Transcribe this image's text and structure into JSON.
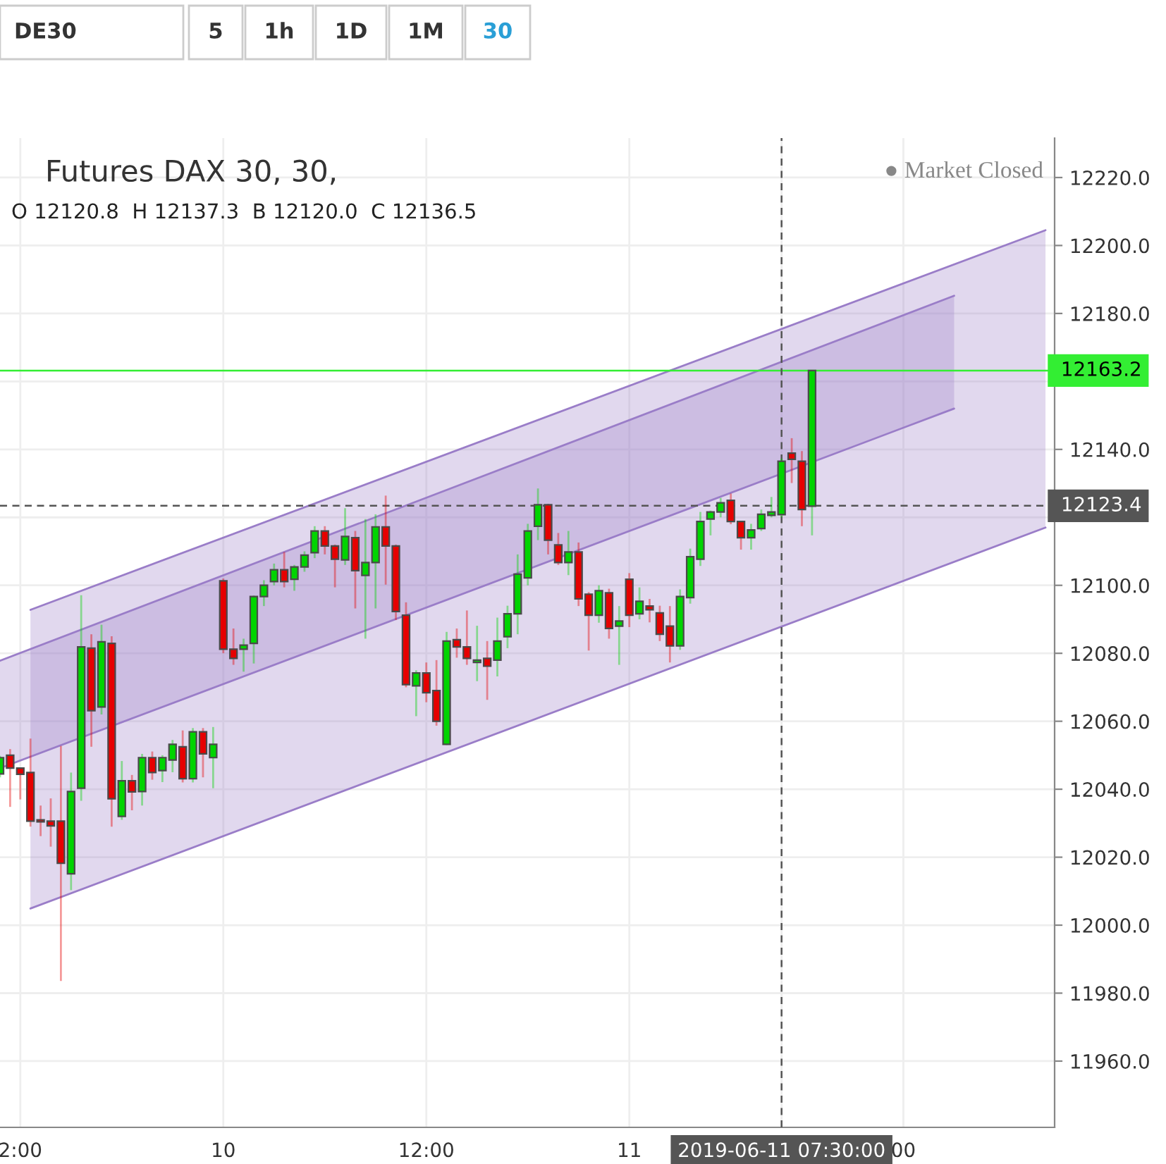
{
  "chart_data": {
    "type": "candlestick",
    "title": "Futures DAX 30, 30,",
    "subtitle": "O 12120.8  H 12137.3  B 12120.0  C 12136.5",
    "annotations": [
      "● Market Closed",
      "DE30",
      "5",
      "1h",
      "1D",
      "1M",
      "30"
    ],
    "categories": [
      null,
      null,
      "2:00",
      null,
      null,
      null,
      null,
      null,
      null,
      null,
      null,
      null,
      null,
      null,
      null,
      null,
      null,
      null,
      null,
      null,
      null,
      null,
      "10",
      null,
      null,
      null,
      null,
      null,
      null,
      null,
      null,
      null,
      null,
      null,
      null,
      null,
      null,
      null,
      null,
      null,
      null,
      null,
      "12:00",
      null,
      null,
      null,
      null,
      null,
      null,
      null,
      null,
      null,
      null,
      null,
      null,
      null,
      null,
      null,
      null,
      null,
      null,
      null,
      "11",
      null,
      null,
      null,
      null,
      null,
      null,
      null,
      null,
      null,
      null,
      null,
      null,
      null,
      null,
      "2019-06-11 07:30:00",
      null,
      null,
      null,
      null,
      null,
      null,
      null,
      null,
      null,
      null,
      null,
      "00",
      null,
      null,
      null,
      null,
      null,
      null,
      null,
      null,
      null,
      null,
      null,
      null,
      null,
      null
    ],
    "ohlc": [
      [
        12044.5,
        12049.8,
        12043.5,
        12049.3
      ],
      [
        12050.0,
        12051.8,
        12034.8,
        12046.2
      ],
      [
        12046.2,
        12046.4,
        12037.0,
        12044.4
      ],
      [
        12044.9,
        12054.9,
        12029.0,
        12030.6
      ],
      [
        12031.0,
        12035.2,
        12026.2,
        12030.4
      ],
      [
        12030.6,
        12037.3,
        12023.1,
        12029.2
      ],
      [
        12030.6,
        12052.7,
        11983.6,
        12018.2
      ],
      [
        12015.1,
        12044.9,
        12010.3,
        12039.3
      ],
      [
        12040.3,
        12097.1,
        12036.6,
        12081.9
      ],
      [
        12081.5,
        12085.6,
        12052.5,
        12063.1
      ],
      [
        12064.2,
        12088.4,
        12062.0,
        12083.4
      ],
      [
        12082.9,
        12085.0,
        12029.0,
        12037.2
      ],
      [
        12032.0,
        12048.3,
        12031.0,
        12042.5
      ],
      [
        12042.5,
        12044.2,
        12033.8,
        12039.2
      ],
      [
        12039.3,
        12050.4,
        12035.2,
        12049.3
      ],
      [
        12049.3,
        12051.1,
        12042.8,
        12044.9
      ],
      [
        12045.5,
        12050.0,
        12042.1,
        12049.3
      ],
      [
        12048.6,
        12054.5,
        12045.0,
        12053.2
      ],
      [
        12052.5,
        12057.3,
        12042.0,
        12043.1
      ],
      [
        12043.1,
        12058.0,
        12042.0,
        12056.9
      ],
      [
        12056.9,
        12058.0,
        12043.5,
        12050.4
      ],
      [
        12049.3,
        12058.3,
        12040.3,
        12053.2
      ],
      [
        12101.3,
        12102.0,
        12080.0,
        12081.2
      ],
      [
        12081.2,
        12087.3,
        12076.6,
        12078.5
      ],
      [
        12081.2,
        12084.3,
        12074.6,
        12082.4
      ],
      [
        12082.9,
        12097.0,
        12077.0,
        12096.7
      ],
      [
        12096.7,
        12101.5,
        12093.9,
        12100.0
      ],
      [
        12101.1,
        12106.4,
        12100.0,
        12104.6
      ],
      [
        12104.6,
        12109.8,
        12099.4,
        12101.1
      ],
      [
        12101.8,
        12106.0,
        12098.4,
        12105.4
      ],
      [
        12105.4,
        12110.0,
        12104.0,
        12108.9
      ],
      [
        12109.6,
        12117.4,
        12108.0,
        12116.0
      ],
      [
        12116.0,
        12117.4,
        12109.1,
        12111.6
      ],
      [
        12111.6,
        12112.0,
        12099.4,
        12107.7
      ],
      [
        12107.5,
        12122.7,
        12106.0,
        12114.4
      ],
      [
        12114.0,
        12116.0,
        12093.2,
        12104.3
      ],
      [
        12102.9,
        12119.5,
        12084.3,
        12106.7
      ],
      [
        12106.7,
        12120.9,
        12093.2,
        12117.2
      ],
      [
        12117.2,
        12126.4,
        12100.2,
        12111.6
      ],
      [
        12111.6,
        12112.0,
        12089.8,
        12092.3
      ],
      [
        12091.2,
        12095.0,
        12070.0,
        12070.8
      ],
      [
        12070.4,
        12075.0,
        12061.5,
        12074.2
      ],
      [
        12074.2,
        12077.3,
        12065.6,
        12068.4
      ],
      [
        12069.0,
        12078.0,
        12058.7,
        12060.0
      ],
      [
        12053.2,
        12086.3,
        12053.0,
        12083.6
      ],
      [
        12084.0,
        12087.3,
        12078.7,
        12081.9
      ],
      [
        12081.9,
        12092.6,
        12076.6,
        12078.5
      ],
      [
        12077.3,
        12088.1,
        12071.8,
        12078.0
      ],
      [
        12078.5,
        12083.6,
        12066.3,
        12076.2
      ],
      [
        12078.0,
        12090.5,
        12073.2,
        12083.6
      ],
      [
        12084.9,
        12094.0,
        12081.5,
        12091.6
      ],
      [
        12091.6,
        12109.1,
        12085.6,
        12103.3
      ],
      [
        12102.2,
        12118.1,
        12100.0,
        12116.0
      ],
      [
        12117.4,
        12128.5,
        12113.3,
        12123.7
      ],
      [
        12123.7,
        12124.0,
        12109.1,
        12113.3
      ],
      [
        12111.9,
        12115.4,
        12106.0,
        12106.7
      ],
      [
        12106.7,
        12116.0,
        12103.0,
        12109.8
      ],
      [
        12109.8,
        12112.6,
        12093.9,
        12096.0
      ],
      [
        12097.4,
        12098.0,
        12080.8,
        12091.2
      ],
      [
        12091.2,
        12100.0,
        12089.0,
        12098.4
      ],
      [
        12097.8,
        12099.0,
        12084.3,
        12087.3
      ],
      [
        12088.0,
        12093.9,
        12076.6,
        12089.5
      ],
      [
        12101.8,
        12103.6,
        12087.7,
        12091.2
      ],
      [
        12091.6,
        12099.4,
        12090.0,
        12095.3
      ],
      [
        12093.9,
        12096.0,
        12089.1,
        12092.8
      ],
      [
        12091.9,
        12094.0,
        12083.6,
        12085.6
      ],
      [
        12088.0,
        12093.9,
        12077.3,
        12082.2
      ],
      [
        12082.2,
        12098.8,
        12081.0,
        12096.7
      ],
      [
        12096.4,
        12110.8,
        12094.6,
        12108.4
      ],
      [
        12107.7,
        12121.6,
        12105.7,
        12118.8
      ],
      [
        12119.5,
        12122.0,
        12114.7,
        12121.6
      ],
      [
        12121.6,
        12125.7,
        12120.0,
        12124.3
      ],
      [
        12125.0,
        12127.0,
        12118.0,
        12118.8
      ],
      [
        12118.8,
        12119.0,
        12110.5,
        12114.0
      ],
      [
        12114.0,
        12118.1,
        12110.5,
        12116.3
      ],
      [
        12116.7,
        12122.3,
        12116.0,
        12120.9
      ],
      [
        12120.6,
        12126.0,
        12120.0,
        12121.6
      ],
      [
        12120.8,
        12137.3,
        12120.0,
        12136.5
      ],
      [
        12138.9,
        12143.3,
        12130.1,
        12137.1
      ],
      [
        12136.5,
        12139.5,
        12117.4,
        12122.3
      ],
      [
        12123.3,
        12163.2,
        12114.7,
        12163.2
      ],
      null,
      null,
      null,
      null,
      null,
      null,
      null,
      null,
      null,
      null,
      null,
      null,
      null,
      null,
      null,
      null,
      null,
      null,
      null,
      null,
      null,
      null,
      null
    ],
    "colors": [
      "#00d400",
      "#e60000",
      "#e60000",
      "#e60000",
      "#e60000",
      "#e60000",
      "#e60000",
      "#00d400",
      "#00d400",
      "#e60000",
      "#00d400",
      "#e60000",
      "#00d400",
      "#e60000",
      "#00d400",
      "#e60000",
      "#00d400",
      "#00d400",
      "#e60000",
      "#00d400",
      "#e60000",
      "#00d400",
      "#e60000",
      "#e60000",
      "#00d400",
      "#00d400",
      "#00d400",
      "#00d400",
      "#e60000",
      "#00d400",
      "#00d400",
      "#00d400",
      "#e60000",
      "#e60000",
      "#00d400",
      "#e60000",
      "#00d400",
      "#00d400",
      "#e60000",
      "#e60000",
      "#e60000",
      "#00d400",
      "#e60000",
      "#e60000",
      "#00d400",
      "#e60000",
      "#e60000",
      "#00d400",
      "#e60000",
      "#00d400",
      "#00d400",
      "#00d400",
      "#00d400",
      "#00d400",
      "#e60000",
      "#e60000",
      "#00d400",
      "#e60000",
      "#e60000",
      "#00d400",
      "#e60000",
      "#00d400",
      "#e60000",
      "#00d400",
      "#e60000",
      "#e60000",
      "#e60000",
      "#00d400",
      "#00d400",
      "#00d400",
      "#00d400",
      "#00d400",
      "#e60000",
      "#e60000",
      "#00d400",
      "#00d400",
      "#00d400",
      "#00d400",
      "#e60000",
      "#e60000",
      "#00d400",
      null,
      null,
      null,
      null,
      null,
      null,
      null,
      null,
      null,
      null,
      null,
      null,
      null,
      null,
      null,
      null,
      null,
      null,
      null,
      null,
      null,
      null,
      null
    ],
    "series": [
      {
        "type": "line",
        "color": "#9a7dc8",
        "values": [
          null,
          null,
          null,
          12004.9,
          null,
          null,
          null,
          null,
          null,
          null,
          null,
          null,
          null,
          null,
          null,
          null,
          null,
          null,
          null,
          null,
          null,
          null,
          null,
          null,
          null,
          null,
          null,
          null,
          null,
          null,
          null,
          null,
          null,
          null,
          null,
          null,
          null,
          null,
          null,
          null,
          null,
          null,
          null,
          null,
          null,
          null,
          null,
          null,
          null,
          null,
          null,
          null,
          null,
          null,
          null,
          null,
          null,
          null,
          null,
          null,
          null,
          null,
          null,
          null,
          null,
          null,
          null,
          null,
          null,
          null,
          null,
          null,
          null,
          null,
          null,
          null,
          null,
          null,
          null,
          null,
          null,
          null,
          null,
          null,
          null,
          null,
          null,
          null,
          null,
          null,
          null,
          null,
          null,
          null,
          null,
          null,
          null,
          null,
          null,
          null,
          null,
          null,
          null,
          12117.0
        ]
      },
      {
        "type": "line",
        "color": "#9a7dc8",
        "values": [
          12046.2,
          null,
          null,
          null,
          null,
          null,
          null,
          null,
          null,
          null,
          null,
          null,
          null,
          null,
          null,
          null,
          null,
          null,
          null,
          null,
          null,
          null,
          null,
          null,
          null,
          null,
          null,
          null,
          null,
          null,
          null,
          null,
          null,
          null,
          null,
          null,
          null,
          null,
          null,
          null,
          null,
          null,
          null,
          null,
          null,
          null,
          null,
          null,
          null,
          null,
          null,
          null,
          null,
          null,
          null,
          null,
          null,
          null,
          null,
          null,
          null,
          null,
          null,
          null,
          null,
          null,
          null,
          null,
          null,
          null,
          null,
          null,
          null,
          null,
          null,
          null,
          null,
          null,
          null,
          null,
          null,
          null,
          null,
          null,
          null,
          null,
          null,
          null,
          null,
          null,
          null,
          null,
          null,
          null,
          12152.0,
          null,
          null,
          null,
          null,
          null,
          null,
          null,
          null,
          null
        ]
      },
      {
        "type": "line",
        "color": "#9a7dc8",
        "upper": [
          null,
          null,
          null,
          12092.8,
          null,
          null,
          null,
          null,
          null,
          null,
          null,
          null,
          null,
          null,
          null,
          null,
          null,
          null,
          null,
          null,
          null,
          null,
          null,
          null,
          null,
          null,
          null,
          null,
          null,
          null,
          null,
          null,
          null,
          null,
          null,
          null,
          null,
          null,
          null,
          null,
          null,
          null,
          null,
          null,
          null,
          null,
          null,
          null,
          null,
          null,
          null,
          null,
          null,
          null,
          null,
          null,
          null,
          null,
          null,
          null,
          null,
          null,
          null,
          null,
          null,
          null,
          null,
          null,
          null,
          null,
          null,
          null,
          null,
          null,
          null,
          null,
          null,
          null,
          null,
          null,
          null,
          null,
          null,
          null,
          null,
          null,
          null,
          null,
          null,
          null,
          null,
          null,
          null,
          null,
          null,
          null,
          null,
          null,
          null,
          null,
          null,
          null,
          null,
          12204.5
        ],
        "values": [
          null,
          null,
          null,
          12092.8,
          null,
          null,
          null,
          null,
          null,
          null,
          null,
          null,
          null,
          null,
          null,
          null,
          null,
          null,
          null,
          null,
          null,
          null,
          null,
          null,
          null,
          null,
          null,
          null,
          null,
          null,
          null,
          null,
          null,
          null,
          null,
          null,
          null,
          null,
          null,
          null,
          null,
          null,
          null,
          null,
          null,
          null,
          null,
          null,
          null,
          null,
          null,
          null,
          null,
          null,
          null,
          null,
          null,
          null,
          null,
          null,
          null,
          null,
          null,
          null,
          null,
          null,
          null,
          null,
          null,
          null,
          null,
          null,
          null,
          null,
          null,
          null,
          null,
          null,
          null,
          null,
          null,
          null,
          null,
          null,
          null,
          null,
          null,
          null,
          null,
          null,
          null,
          null,
          null,
          null,
          null,
          null,
          null,
          null,
          null,
          null,
          null,
          null,
          null,
          12204.5
        ],
        "lower": [
          null,
          null,
          null,
          12004.9,
          null,
          null,
          null,
          null,
          null,
          null,
          null,
          null,
          null,
          null,
          null,
          null,
          null,
          null,
          null,
          null,
          null,
          null,
          null,
          null,
          null,
          null,
          null,
          null,
          null,
          null,
          null,
          null,
          null,
          null,
          null,
          null,
          null,
          null,
          null,
          null,
          null,
          null,
          null,
          null,
          null,
          null,
          null,
          null,
          null,
          null,
          null,
          null,
          null,
          null,
          null,
          null,
          null,
          null,
          null,
          null,
          null,
          null,
          null,
          null,
          null,
          null,
          null,
          null,
          null,
          null,
          null,
          null,
          null,
          null,
          null,
          null,
          null,
          null,
          null,
          null,
          null,
          null,
          null,
          null,
          null,
          null,
          null,
          null,
          null,
          null,
          null,
          null,
          null,
          null,
          null,
          null,
          null,
          null,
          null,
          null,
          null,
          null,
          null,
          12117.0
        ]
      },
      {
        "type": "line",
        "color": "#9a7dc8",
        "upper": [
          12077.8,
          null,
          null,
          null,
          null,
          null,
          null,
          null,
          null,
          null,
          null,
          null,
          null,
          null,
          null,
          null,
          null,
          null,
          null,
          null,
          null,
          null,
          null,
          null,
          null,
          null,
          null,
          null,
          null,
          null,
          null,
          null,
          null,
          null,
          null,
          null,
          null,
          null,
          null,
          null,
          null,
          null,
          null,
          null,
          null,
          null,
          null,
          null,
          null,
          null,
          null,
          null,
          null,
          null,
          null,
          null,
          null,
          null,
          null,
          null,
          null,
          null,
          null,
          null,
          null,
          null,
          null,
          null,
          null,
          null,
          null,
          null,
          null,
          null,
          null,
          null,
          null,
          null,
          null,
          null,
          null,
          null,
          null,
          null,
          null,
          null,
          null,
          null,
          null,
          null,
          null,
          null,
          null,
          null,
          12185.2,
          null,
          null,
          null,
          null,
          null,
          null,
          null,
          null,
          null
        ],
        "values": [
          12077.8,
          null,
          null,
          null,
          null,
          null,
          null,
          null,
          null,
          null,
          null,
          null,
          null,
          null,
          null,
          null,
          null,
          null,
          null,
          null,
          null,
          null,
          null,
          null,
          null,
          null,
          null,
          null,
          null,
          null,
          null,
          null,
          null,
          null,
          null,
          null,
          null,
          null,
          null,
          null,
          null,
          null,
          null,
          null,
          null,
          null,
          null,
          null,
          null,
          null,
          null,
          null,
          null,
          null,
          null,
          null,
          null,
          null,
          null,
          null,
          null,
          null,
          null,
          null,
          null,
          null,
          null,
          null,
          null,
          null,
          null,
          null,
          null,
          null,
          null,
          null,
          null,
          null,
          null,
          null,
          null,
          null,
          null,
          null,
          null,
          null,
          null,
          null,
          null,
          null,
          null,
          null,
          null,
          null,
          12185.2,
          null,
          null,
          null,
          null,
          null,
          null,
          null,
          null,
          null
        ],
        "lower": [
          12046.2,
          null,
          null,
          null,
          null,
          null,
          null,
          null,
          null,
          null,
          null,
          null,
          null,
          null,
          null,
          null,
          null,
          null,
          null,
          null,
          null,
          null,
          null,
          null,
          null,
          null,
          null,
          null,
          null,
          null,
          null,
          null,
          null,
          null,
          null,
          null,
          null,
          null,
          null,
          null,
          null,
          null,
          null,
          null,
          null,
          null,
          null,
          null,
          null,
          null,
          null,
          null,
          null,
          null,
          null,
          null,
          null,
          null,
          null,
          null,
          null,
          null,
          null,
          null,
          null,
          null,
          null,
          null,
          null,
          null,
          null,
          null,
          null,
          null,
          null,
          null,
          null,
          null,
          null,
          null,
          null,
          null,
          null,
          null,
          null,
          null,
          null,
          null,
          null,
          null,
          null,
          null,
          null,
          null,
          12152.0,
          null,
          null,
          null,
          null,
          null,
          null,
          null,
          null,
          null
        ]
      }
    ],
    "ref_lines": [
      {
        "axis": "y",
        "value": 12163.2,
        "label": "12163.2",
        "color": "#33ee33",
        "line_style": "solid"
      },
      {
        "axis": "y",
        "value": 12123.4,
        "label": "12123.4",
        "color": "#555555",
        "line_style": "dashed"
      },
      {
        "axis": "x",
        "value": "2019-06-11 07:30:00",
        "color": "#555555",
        "line_style": "dashed"
      }
    ],
    "ylim": [
      11940.5,
      12231.6
    ],
    "yticks": [
      {
        "value": 11960,
        "label": "11960.0"
      },
      {
        "value": 11980,
        "label": "11980.0"
      },
      {
        "value": 12000,
        "label": "12000.0"
      },
      {
        "value": 12020,
        "label": "12020.0"
      },
      {
        "value": 12040,
        "label": "12040.0"
      },
      {
        "value": 12060,
        "label": "12060.0"
      },
      {
        "value": 12080,
        "label": "12080.0"
      },
      {
        "value": 12100,
        "label": "12100.0"
      },
      {
        "value": 12120,
        "label": null
      },
      {
        "value": 12140,
        "label": "12140.0"
      },
      {
        "value": 12160,
        "label": null
      },
      {
        "value": 12180,
        "label": "12180.0"
      },
      {
        "value": 12200,
        "label": "12200.0"
      },
      {
        "value": 12220,
        "label": "12220.0"
      }
    ],
    "grid": true
  }
}
